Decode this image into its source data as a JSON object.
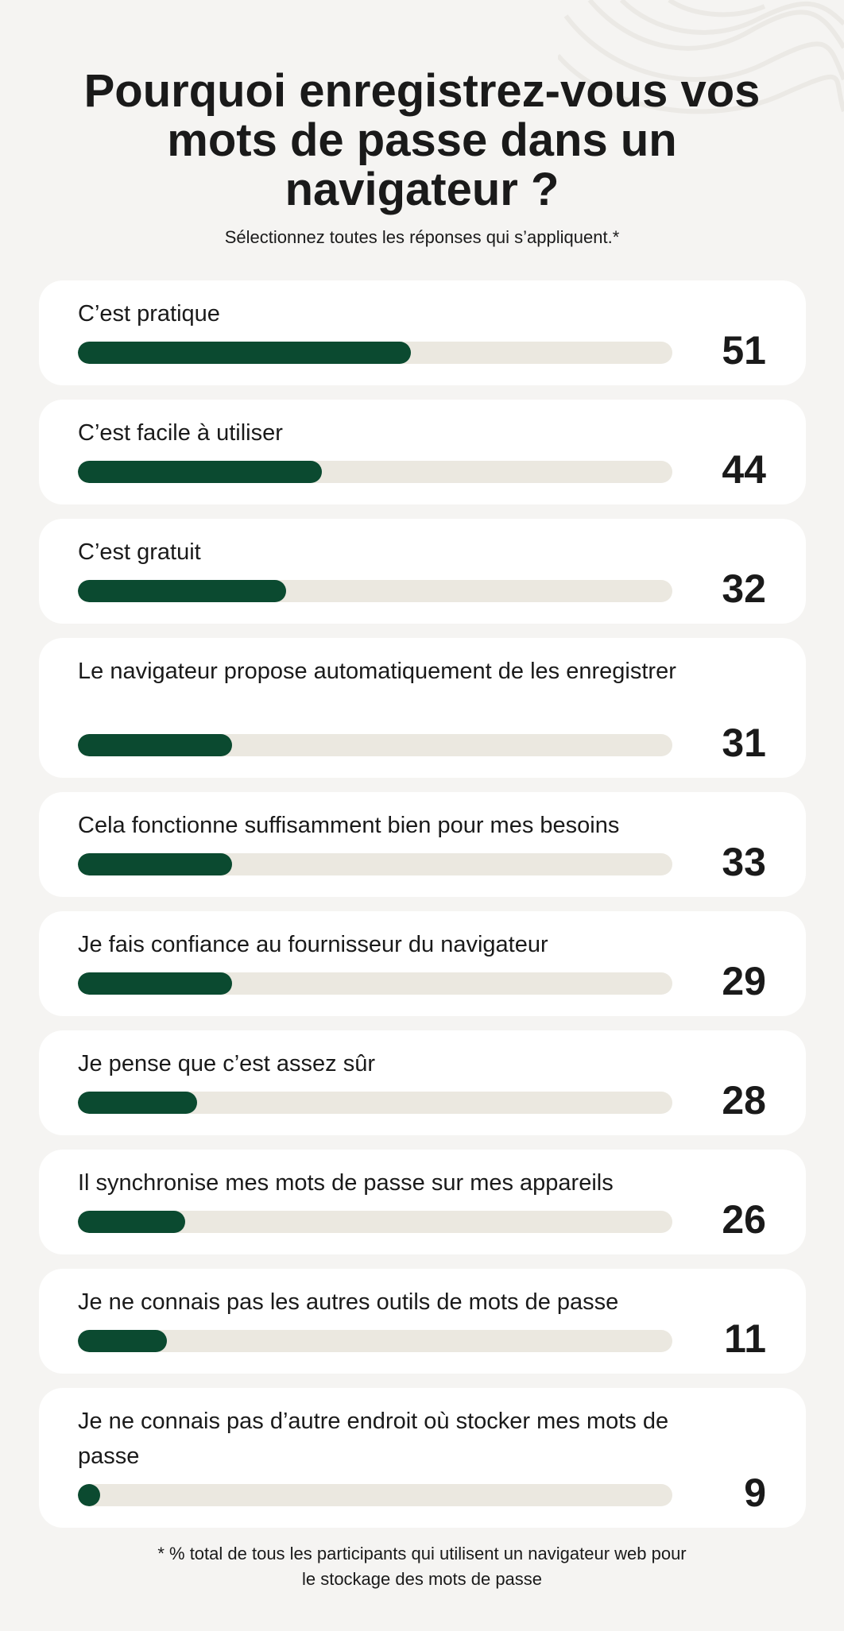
{
  "title": "Pourquoi enregistrez-vous vos mots de passe dans un navigateur ?",
  "subtitle": "Sélectionnez toutes les réponses qui s’appliquent.*",
  "footnote_line1": "* % total de tous les participants qui utilisent un navigateur web pour",
  "footnote_line2": "le stockage des mots de passe",
  "colors": {
    "background": "#f5f4f2",
    "card": "#ffffff",
    "bar_fill": "#0b4a30",
    "bar_track": "#ebe8e0",
    "text": "#1a1a1a"
  },
  "chart_data": {
    "type": "bar",
    "orientation": "horizontal",
    "title": "Pourquoi enregistrez-vous vos mots de passe dans un navigateur ?",
    "categories": [
      "C’est pratique",
      "C’est facile à utiliser",
      "C’est gratuit",
      "Le navigateur propose automatiquement de les enregistrer",
      "Cela fonctionne suffisamment bien pour mes besoins",
      "Je fais confiance au fournisseur du navigateur",
      "Je pense que c’est assez sûr",
      "Il synchronise mes mots de passe sur mes appareils",
      "Je ne connais pas les autres outils de mots de passe",
      "Je ne connais pas d’autre endroit où stocker mes mots de passe"
    ],
    "values": [
      51,
      44,
      32,
      31,
      33,
      29,
      28,
      26,
      11,
      9
    ],
    "bar_fill_fraction": [
      0.56,
      0.41,
      0.35,
      0.26,
      0.26,
      0.26,
      0.2,
      0.18,
      0.15,
      0.04
    ],
    "grid": false,
    "legend": "none"
  }
}
